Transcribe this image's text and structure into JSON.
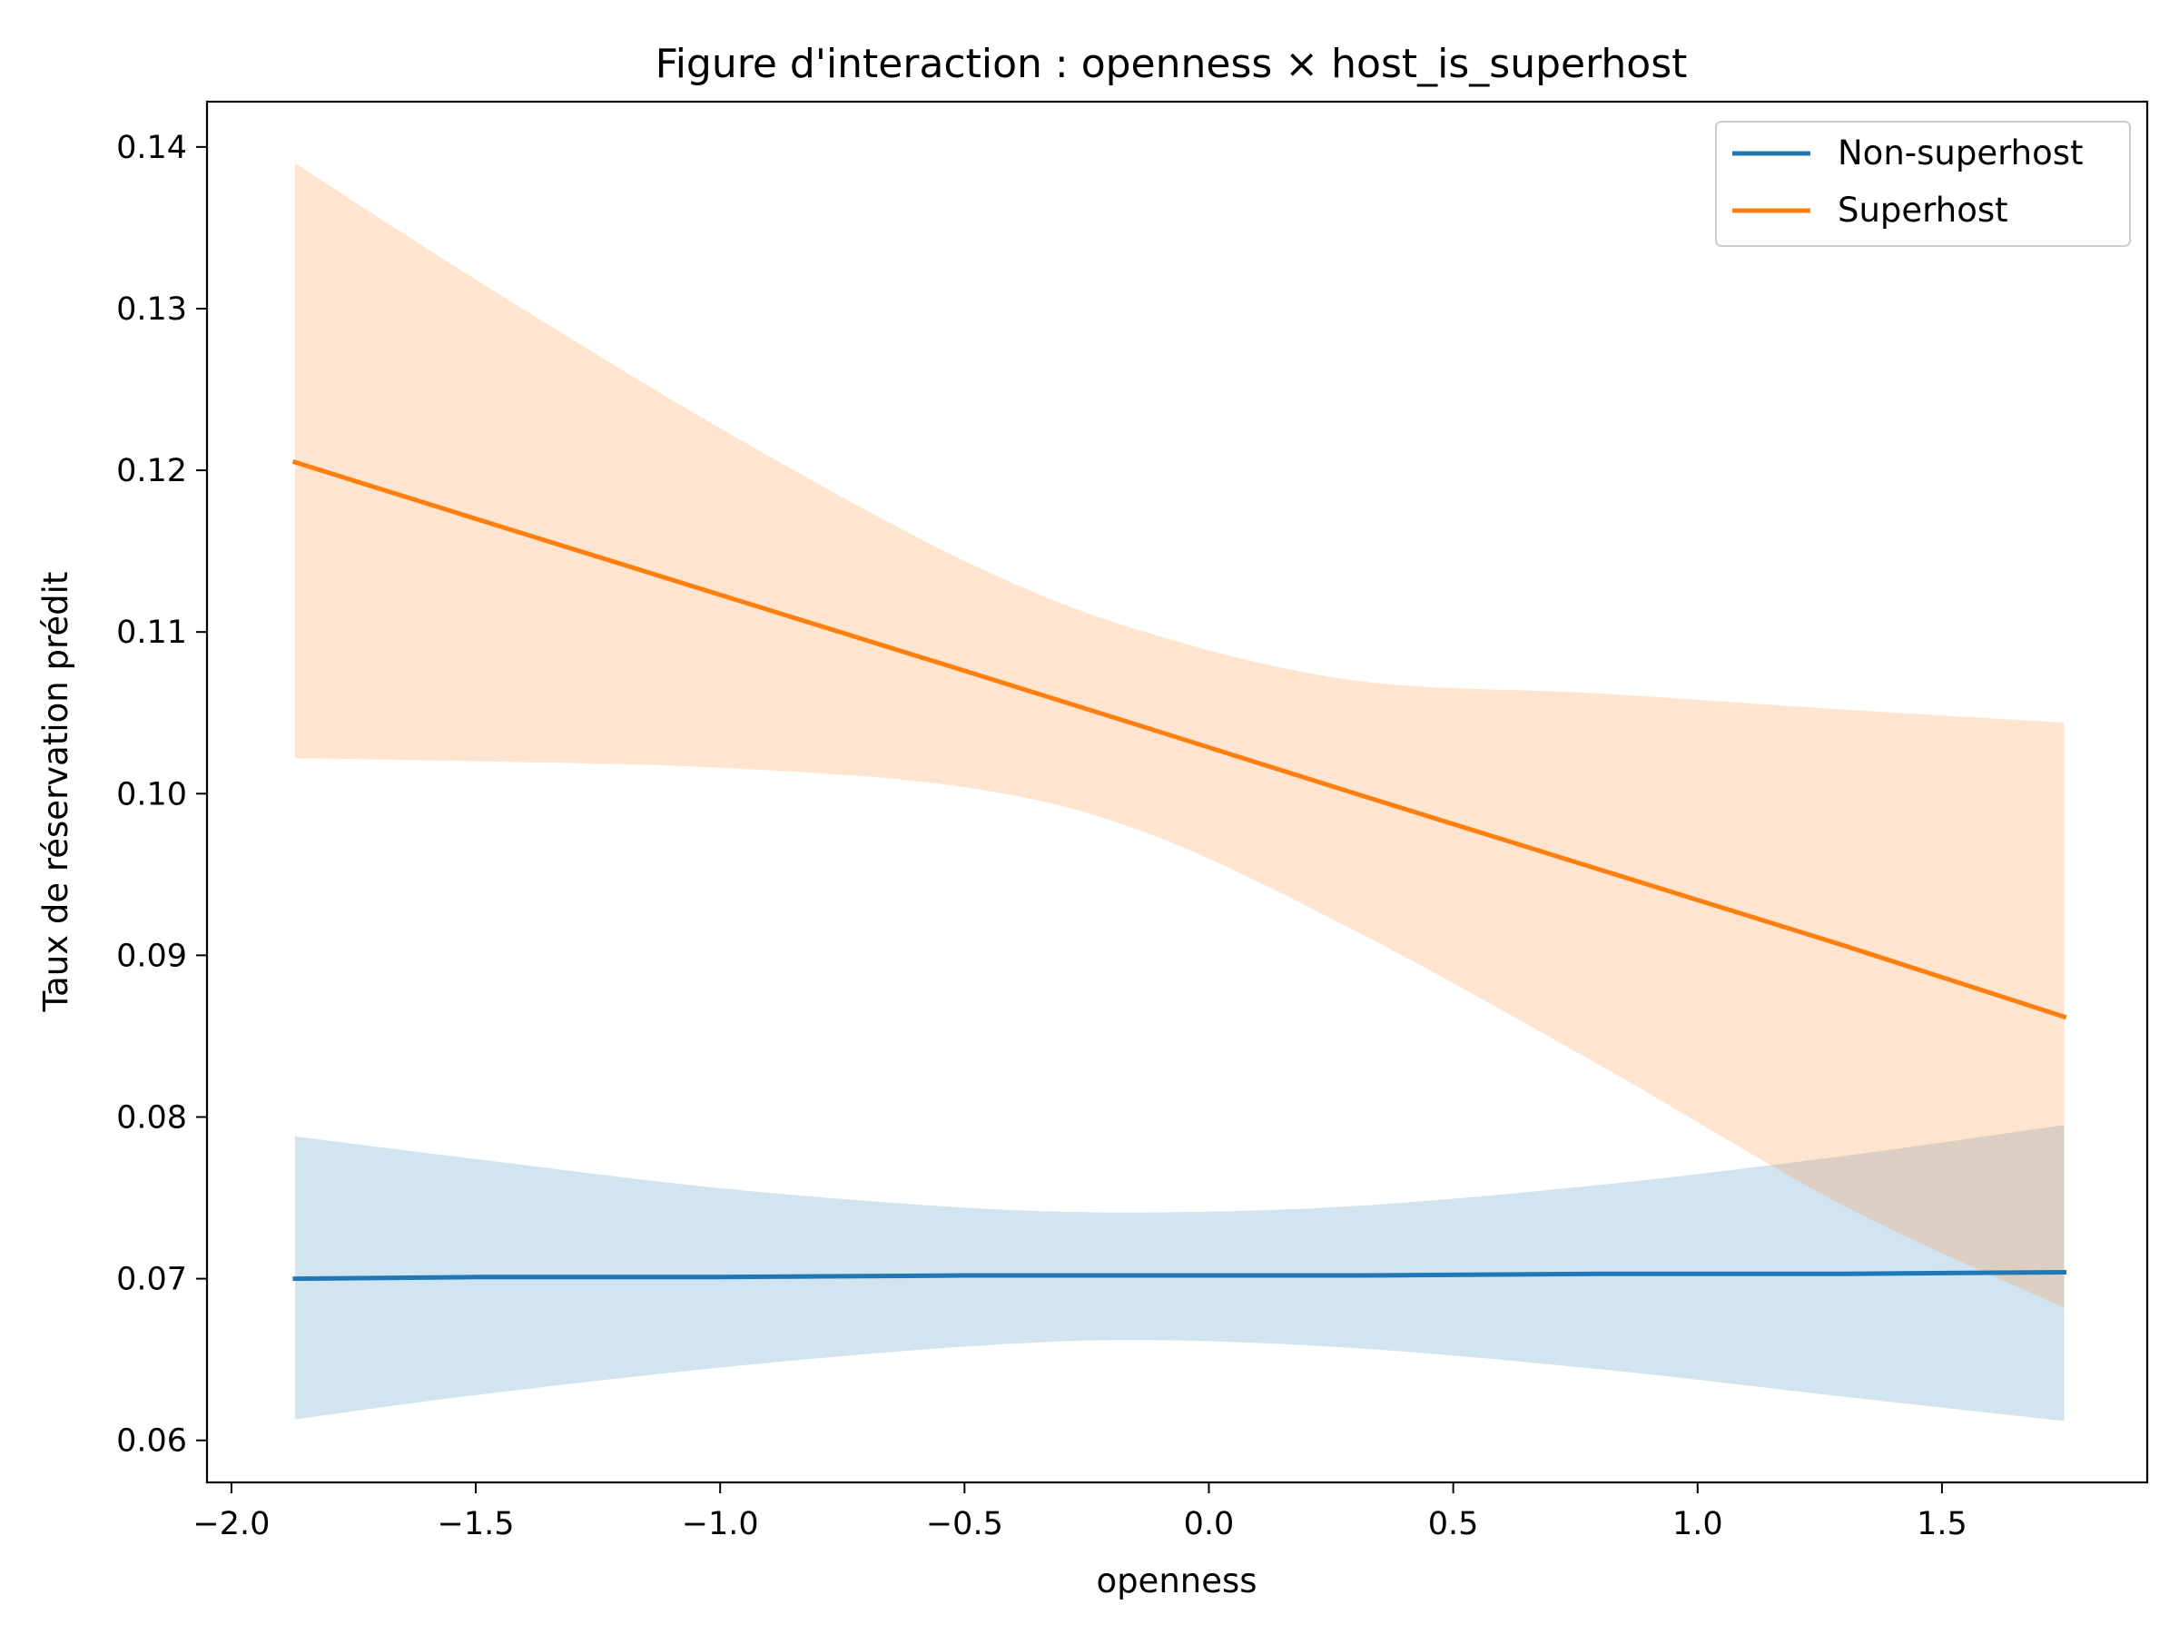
{
  "chart_data": {
    "type": "line",
    "title": "Figure d'interaction : openness × host_is_superhost",
    "xlabel": "openness",
    "ylabel": "Taux de réservation prédit",
    "xlim": [
      -2.05,
      1.92
    ],
    "ylim": [
      0.0574,
      0.1428
    ],
    "xticks": [
      -2.0,
      -1.5,
      -1.0,
      -0.5,
      0.0,
      0.5,
      1.0,
      1.5
    ],
    "xtick_labels": [
      "−2.0",
      "−1.5",
      "−1.0",
      "−0.5",
      "0.0",
      "0.5",
      "1.0",
      "1.5"
    ],
    "yticks": [
      0.06,
      0.07,
      0.08,
      0.09,
      0.1,
      0.11,
      0.12,
      0.13,
      0.14
    ],
    "ytick_labels": [
      "0.06",
      "0.07",
      "0.08",
      "0.09",
      "0.10",
      "0.11",
      "0.12",
      "0.13",
      "0.14"
    ],
    "grid": false,
    "legend_position": "top-right",
    "series": [
      {
        "name": "Non-superhost",
        "color": "#1f77b4",
        "x": [
          -1.87,
          -1.5,
          -1.0,
          -0.5,
          -0.13,
          0.3,
          0.8,
          1.3,
          1.75
        ],
        "y": [
          0.07,
          0.0701,
          0.0701,
          0.0702,
          0.0702,
          0.0702,
          0.0703,
          0.0703,
          0.0704
        ],
        "ci_lower": [
          0.0613,
          0.0628,
          0.0645,
          0.0658,
          0.0662,
          0.0657,
          0.0644,
          0.0627,
          0.0612
        ],
        "ci_upper": [
          0.0788,
          0.0774,
          0.0756,
          0.0744,
          0.0741,
          0.0745,
          0.0758,
          0.0776,
          0.0795
        ]
      },
      {
        "name": "Superhost",
        "color": "#ff7f0e",
        "x": [
          -1.87,
          -1.5,
          -1.0,
          -0.5,
          -0.13,
          0.3,
          0.8,
          1.3,
          1.75
        ],
        "y": [
          0.1205,
          0.117,
          0.1123,
          0.1076,
          0.1041,
          0.1,
          0.0953,
          0.0906,
          0.0862
        ],
        "ci_lower": [
          0.1022,
          0.102,
          0.1016,
          0.1004,
          0.0976,
          0.0915,
          0.0832,
          0.0745,
          0.0682
        ],
        "ci_upper": [
          0.139,
          0.1318,
          0.1226,
          0.1144,
          0.11,
          0.107,
          0.1062,
          0.1052,
          0.1044
        ]
      }
    ]
  }
}
